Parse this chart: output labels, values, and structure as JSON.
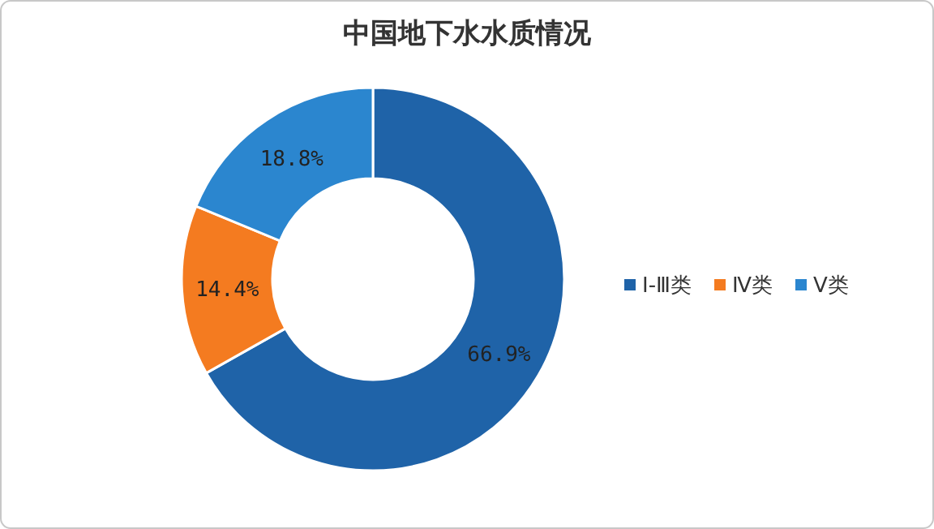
{
  "chart_data": {
    "type": "donut",
    "title": "中国地下水水质情况",
    "categories": [
      "Ⅰ-Ⅲ类",
      "Ⅳ类",
      "Ⅴ类"
    ],
    "values": [
      66.9,
      14.4,
      18.8
    ],
    "colors": [
      "#1f63a8",
      "#f47b20",
      "#2b86cf"
    ],
    "value_labels": [
      "66.9%",
      "14.4%",
      "18.8%"
    ],
    "legend": "right"
  }
}
